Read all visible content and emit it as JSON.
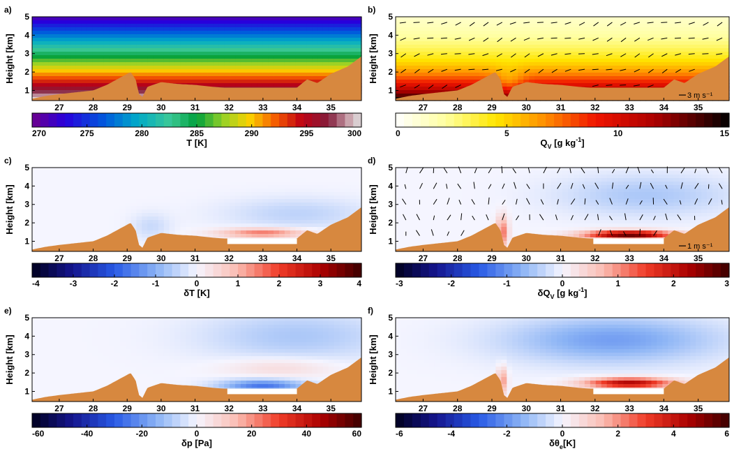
{
  "terrain_color": "#d7883f",
  "x_ticks": [
    "27",
    "28",
    "29",
    "30",
    "31",
    "32",
    "33",
    "34",
    "35"
  ],
  "y_ticks": [
    "1",
    "2",
    "3",
    "4",
    "5"
  ],
  "ylabel": "Height [km]",
  "chart_data": [
    {
      "panel_label": "a)",
      "type": "heatmap",
      "field": "temperature",
      "x_ticks": [
        27,
        28,
        29,
        30,
        31,
        32,
        33,
        34,
        35
      ],
      "y_ticks": [
        1,
        2,
        3,
        4,
        5
      ],
      "ylabel": "Height [km]",
      "colorbar": {
        "label": "T [K]",
        "ticks": [
          "270",
          "275",
          "280",
          "285",
          "290",
          "295",
          "300"
        ],
        "range": [
          270,
          300
        ],
        "scheme": "jet"
      },
      "vectors": false,
      "scale_label": ""
    },
    {
      "panel_label": "b)",
      "type": "heatmap",
      "field": "specific humidity",
      "x_ticks": [
        27,
        28,
        29,
        30,
        31,
        32,
        33,
        34,
        35
      ],
      "y_ticks": [
        1,
        2,
        3,
        4,
        5
      ],
      "ylabel": "Height [km]",
      "colorbar": {
        "label_main": "Q",
        "label_sub": "V",
        "label_rest": " [g kg",
        "label_sup": "-1",
        "label_end": "]",
        "ticks": [
          "0",
          "5",
          "10",
          "15"
        ],
        "range": [
          0,
          15
        ],
        "scheme": "hot"
      },
      "vectors": true,
      "scale_label": "3 m s⁻¹"
    },
    {
      "panel_label": "c)",
      "type": "heatmap",
      "field": "temperature difference",
      "x_ticks": [
        27,
        28,
        29,
        30,
        31,
        32,
        33,
        34,
        35
      ],
      "y_ticks": [
        1,
        2,
        3,
        4,
        5
      ],
      "ylabel": "Height [km]",
      "colorbar": {
        "label": "δT [K]",
        "ticks": [
          "-4",
          "-3",
          "-2",
          "-1",
          "0",
          "1",
          "2",
          "3",
          "4"
        ],
        "range": [
          -4,
          4
        ],
        "scheme": "diverging"
      },
      "vectors": false,
      "scale_label": ""
    },
    {
      "panel_label": "d)",
      "type": "heatmap",
      "field": "humidity difference",
      "x_ticks": [
        27,
        28,
        29,
        30,
        31,
        32,
        33,
        34,
        35
      ],
      "y_ticks": [
        1,
        2,
        3,
        4,
        5
      ],
      "ylabel": "Height [km]",
      "colorbar": {
        "label_main": "δQ",
        "label_sub": "V",
        "label_rest": " [g kg",
        "label_sup": "-1",
        "label_end": "]",
        "ticks": [
          "-3",
          "-2",
          "-1",
          "0",
          "1",
          "2",
          "3"
        ],
        "range": [
          -3,
          3
        ],
        "scheme": "diverging"
      },
      "vectors": true,
      "scale_label": "1 m s⁻¹"
    },
    {
      "panel_label": "e)",
      "type": "heatmap",
      "field": "pressure difference",
      "x_ticks": [
        27,
        28,
        29,
        30,
        31,
        32,
        33,
        34,
        35
      ],
      "y_ticks": [
        1,
        2,
        3,
        4,
        5
      ],
      "ylabel": "Height [km]",
      "colorbar": {
        "label": "δp [Pa]",
        "ticks": [
          "-60",
          "-40",
          "-20",
          "0",
          "20",
          "40",
          "60"
        ],
        "range": [
          -60,
          60
        ],
        "scheme": "diverging"
      },
      "vectors": false,
      "scale_label": ""
    },
    {
      "panel_label": "f)",
      "type": "heatmap",
      "field": "equivalent potential temperature difference",
      "x_ticks": [
        27,
        28,
        29,
        30,
        31,
        32,
        33,
        34,
        35
      ],
      "y_ticks": [
        1,
        2,
        3,
        4,
        5
      ],
      "ylabel": "Height [km]",
      "colorbar": {
        "label_main": "δθ",
        "label_sub": "e",
        "label_rest": "[K]",
        "label_sup": "",
        "label_end": "",
        "ticks": [
          "-6",
          "-4",
          "-2",
          "0",
          "2",
          "4",
          "6"
        ],
        "range": [
          -6,
          6
        ],
        "scheme": "diverging"
      },
      "vectors": false,
      "scale_label": ""
    }
  ]
}
